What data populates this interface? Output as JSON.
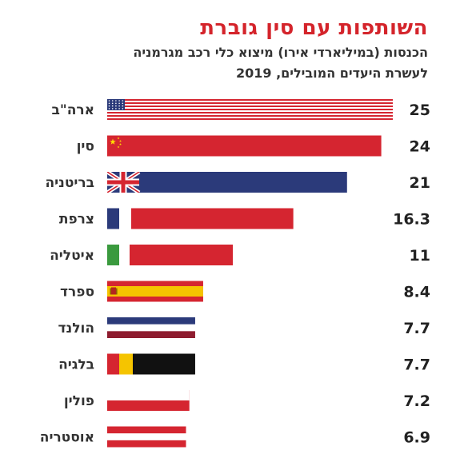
{
  "chart_data": {
    "type": "bar",
    "orientation": "horizontal",
    "title": "השותפות עם סין גוברת",
    "subtitle_line1": "הכנסות (במיליארדי אירו) מיצוא כלי רכב מגרמניה",
    "subtitle_line2": "לעשרת היעדים המובילים, 2019",
    "categories": [
      "ארה\"ב",
      "סין",
      "בריטניה",
      "צרפת",
      "איטליה",
      "ספרד",
      "הולנד",
      "בלגיה",
      "פולין",
      "אוסטריה"
    ],
    "values": [
      25,
      24,
      21,
      16.3,
      11,
      8.4,
      7.7,
      7.7,
      7.2,
      6.9
    ],
    "value_labels": [
      "25",
      "24",
      "21",
      "16.3",
      "11",
      "8.4",
      "7.7",
      "7.7",
      "7.2",
      "6.9"
    ],
    "bar_style": [
      "usa-flag",
      "china-flag",
      "uk-flag",
      "france-flag",
      "italy-flag",
      "spain-flag",
      "netherlands-flag",
      "belgium-flag",
      "poland-flag",
      "austria-flag"
    ],
    "xlim": [
      0,
      25
    ]
  },
  "colors": {
    "title": "#d4242b",
    "flag_red": "#d52530",
    "flag_blue": "#2b3a7a",
    "flag_green": "#3a9a3e",
    "flag_yellow": "#f5c400",
    "flag_black": "#111111"
  }
}
